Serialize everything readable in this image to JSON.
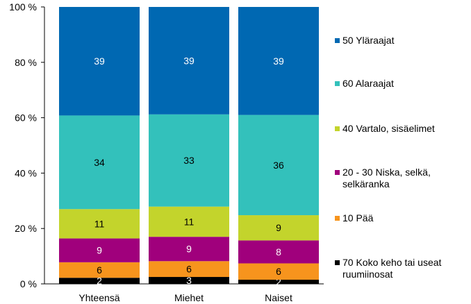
{
  "chart_data": {
    "type": "bar",
    "stacked": true,
    "percent": true,
    "categories": [
      "Yhteensä",
      "Miehet",
      "Naiset"
    ],
    "ylim": [
      0,
      100
    ],
    "yticks": [
      "0 %",
      "20 %",
      "40 %",
      "60 %",
      "80 %",
      "100 %"
    ],
    "grid": false,
    "legend_position": "right",
    "series": [
      {
        "name": "70 Koko keho tai useat ruumiinosat",
        "color": "#000000",
        "label_color": "#ffffff",
        "values": [
          2,
          3,
          2
        ],
        "stack_values": [
          2.2,
          2.5,
          1.5
        ]
      },
      {
        "name": "10 Pää",
        "color": "#f7941d",
        "label_color": "#000000",
        "values": [
          6,
          6,
          6
        ],
        "stack_values": [
          5.6,
          5.7,
          5.9
        ]
      },
      {
        "name": "20 - 30 Niska,  selkä, selkäranka",
        "color": "#a0007c",
        "label_color": "#ffffff",
        "values": [
          9,
          9,
          8
        ],
        "stack_values": [
          8.6,
          8.8,
          8.3
        ]
      },
      {
        "name": "40 Vartalo, sisäelimet",
        "color": "#c3d42c",
        "label_color": "#000000",
        "values": [
          11,
          11,
          9
        ],
        "stack_values": [
          10.6,
          10.9,
          9.1
        ]
      },
      {
        "name": "60 Alaraajat",
        "color": "#33c1bb",
        "label_color": "#000000",
        "values": [
          34,
          33,
          36
        ],
        "stack_values": [
          33.8,
          33.3,
          36.2
        ]
      },
      {
        "name": "50 Yläraajat",
        "color": "#0068b2",
        "label_color": "#ffffff",
        "values": [
          39,
          39,
          39
        ],
        "stack_values": [
          39.2,
          38.8,
          39.0
        ]
      }
    ]
  },
  "legend": {
    "order": [
      5,
      4,
      3,
      2,
      1,
      0
    ],
    "labels": [
      "50 Yläraajat",
      "60 Alaraajat",
      "40 Vartalo, sisäelimet",
      "20 - 30 Niska,  selkä, selkäranka",
      "10 Pää",
      "70 Koko keho tai useat ruumiinosat"
    ]
  }
}
